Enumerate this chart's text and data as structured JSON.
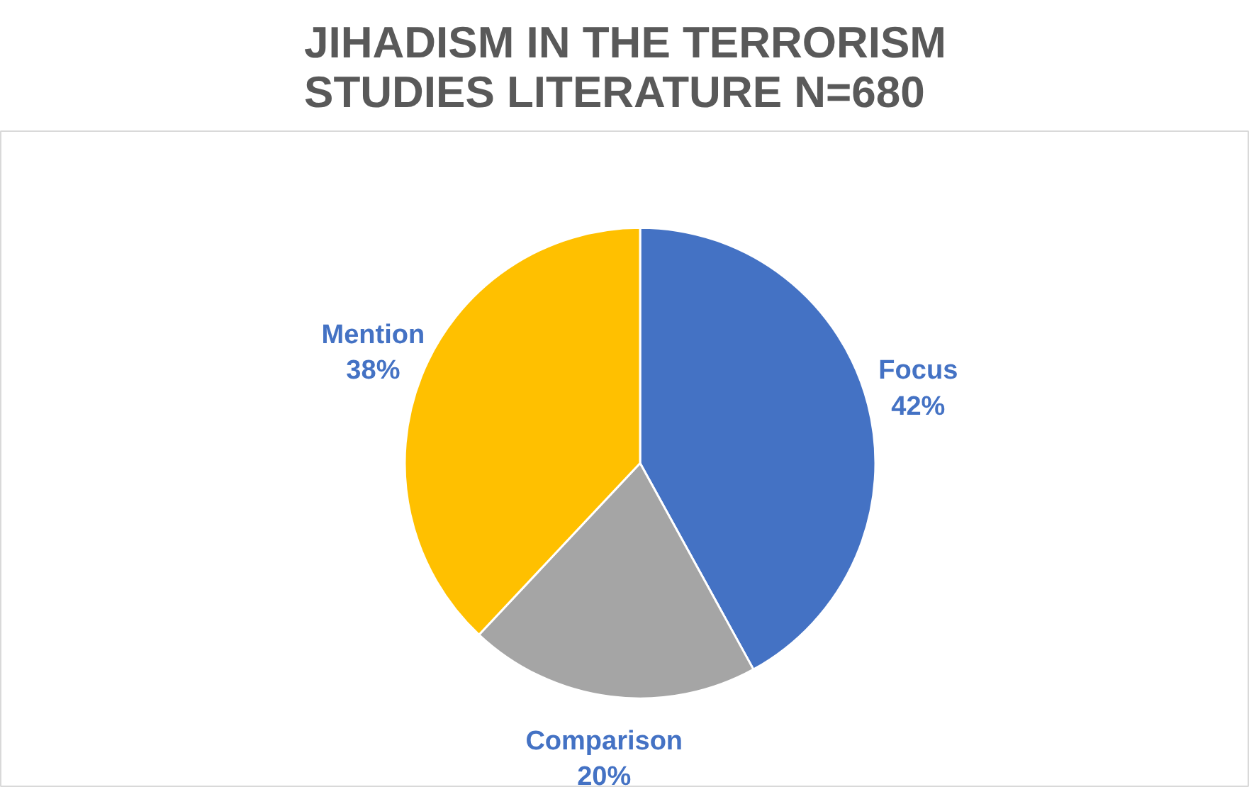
{
  "chart_data": {
    "type": "pie",
    "title": "JIHADISM IN THE TERRORISM\nSTUDIES LITERATURE N=680",
    "categories": [
      "Focus",
      "Comparison",
      "Mention"
    ],
    "values": [
      42,
      20,
      38
    ],
    "colors": [
      "#4472c4",
      "#a5a5a5",
      "#ffc000"
    ],
    "value_labels": [
      "42%",
      "20%",
      "38%"
    ]
  }
}
